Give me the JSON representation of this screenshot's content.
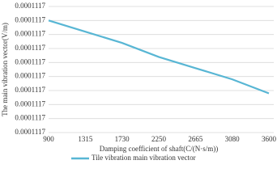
{
  "chart_data": {
    "type": "line",
    "x_label": "Damping coefficient of shaft(C/(N·s/m))",
    "y_label": "The main vibration vector(V/m)",
    "categories": [
      "900",
      "1315",
      "1730",
      "2250",
      "2665",
      "3080",
      "3600"
    ],
    "series": [
      {
        "name": "Tile vibration main vibration vector",
        "color": "#58b6d4",
        "values": [
          0.000111704,
          0.0001117036,
          0.0001117032,
          0.0001117027,
          0.0001117023,
          0.0001117019,
          0.0001117014
        ]
      }
    ],
    "ylim": [
      0.0001117,
      0.0001117045
    ],
    "yticks": [
      {
        "value": 0.0001117,
        "label": "0.0001117"
      },
      {
        "value": 0.0001117005,
        "label": "0.0001117"
      },
      {
        "value": 0.000111701,
        "label": "0.0001117"
      },
      {
        "value": 0.0001117015,
        "label": "0.0001117"
      },
      {
        "value": 0.000111702,
        "label": "0.0001117"
      },
      {
        "value": 0.0001117025,
        "label": "0.0001117"
      },
      {
        "value": 0.000111703,
        "label": "0.0001117"
      },
      {
        "value": 0.0001117035,
        "label": "0.0001117"
      },
      {
        "value": 0.000111704,
        "label": "0.0001117"
      },
      {
        "value": 0.0001117045,
        "label": "0.0001117"
      }
    ],
    "grid": true
  }
}
